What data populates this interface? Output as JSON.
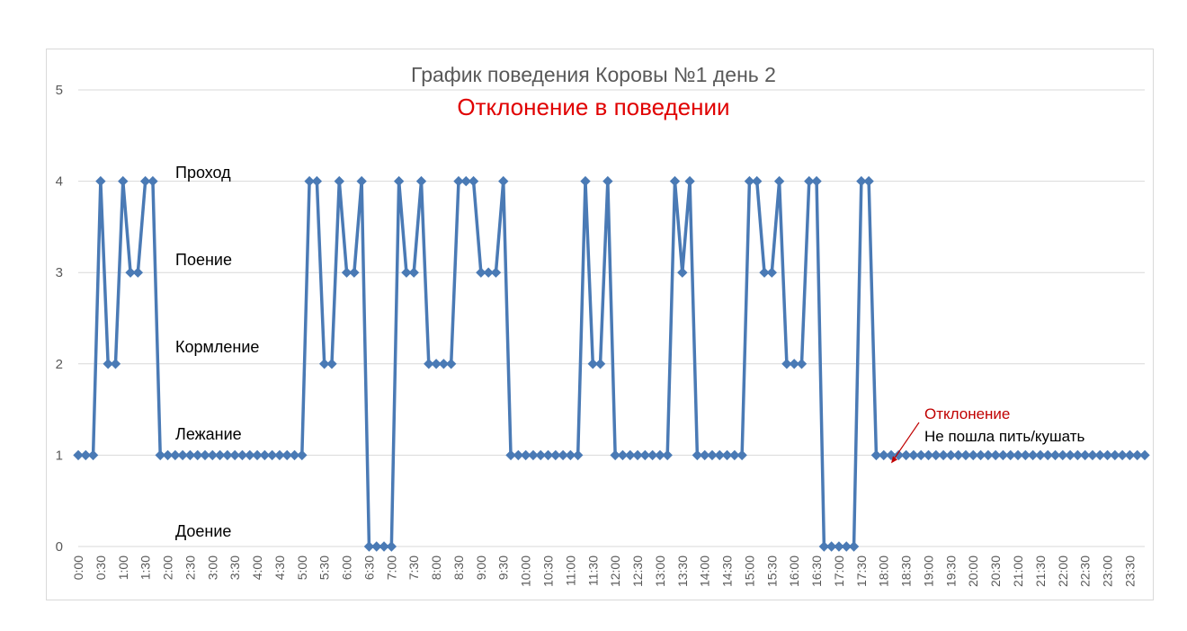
{
  "chart_data": {
    "type": "line",
    "title": "График поведения Коровы №1 день 2",
    "subtitle": "Отклонение в поведении",
    "ylim": [
      0,
      5
    ],
    "yticks": [
      "0",
      "1",
      "2",
      "3",
      "4",
      "5"
    ],
    "grid": true,
    "x_tick_labels": [
      "0:00",
      "0:30",
      "1:00",
      "1:30",
      "2:00",
      "2:30",
      "3:00",
      "3:30",
      "4:00",
      "4:30",
      "5:00",
      "5:30",
      "6:00",
      "6:30",
      "7:00",
      "7:30",
      "8:00",
      "8:30",
      "9:00",
      "9:30",
      "10:00",
      "10:30",
      "11:00",
      "11:30",
      "12:00",
      "12:30",
      "13:00",
      "13:30",
      "14:00",
      "14:30",
      "15:00",
      "15:30",
      "16:00",
      "16:30",
      "17:00",
      "17:30",
      "18:00",
      "18:30",
      "19:00",
      "19:30",
      "20:00",
      "20:30",
      "21:00",
      "21:30",
      "22:00",
      "22:30",
      "23:00",
      "23:30"
    ],
    "interval_minutes": 10,
    "values": [
      1,
      1,
      1,
      4,
      2,
      2,
      4,
      3,
      3,
      4,
      4,
      1,
      1,
      1,
      1,
      1,
      1,
      1,
      1,
      1,
      1,
      1,
      1,
      1,
      1,
      1,
      1,
      1,
      1,
      1,
      1,
      4,
      4,
      2,
      2,
      4,
      3,
      3,
      4,
      0,
      0,
      0,
      0,
      4,
      3,
      3,
      4,
      2,
      2,
      2,
      2,
      4,
      4,
      4,
      3,
      3,
      3,
      4,
      1,
      1,
      1,
      1,
      1,
      1,
      1,
      1,
      1,
      1,
      4,
      2,
      2,
      4,
      1,
      1,
      1,
      1,
      1,
      1,
      1,
      1,
      4,
      3,
      4,
      1,
      1,
      1,
      1,
      1,
      1,
      1,
      4,
      4,
      3,
      3,
      4,
      2,
      2,
      2,
      4,
      4,
      0,
      0,
      0,
      0,
      0,
      4,
      4,
      1,
      1,
      1,
      1,
      1,
      1,
      1,
      1,
      1,
      1,
      1,
      1,
      1,
      1,
      1,
      1,
      1,
      1,
      1,
      1,
      1,
      1,
      1,
      1,
      1,
      1,
      1,
      1,
      1,
      1,
      1,
      1,
      1,
      1,
      1,
      1,
      1
    ],
    "series_color": "#4a7ab5",
    "state_labels": [
      {
        "value": 4,
        "text": "Проход"
      },
      {
        "value": 3,
        "text": "Поение"
      },
      {
        "value": 2,
        "text": "Кормление"
      },
      {
        "value": 1,
        "text": "Лежание"
      },
      {
        "value": 0,
        "text": "Доение"
      }
    ],
    "annotation": {
      "label": "Отклонение",
      "text": "Не пошла пить/кушать",
      "color": "#c00000",
      "point_time": "18:00"
    }
  }
}
